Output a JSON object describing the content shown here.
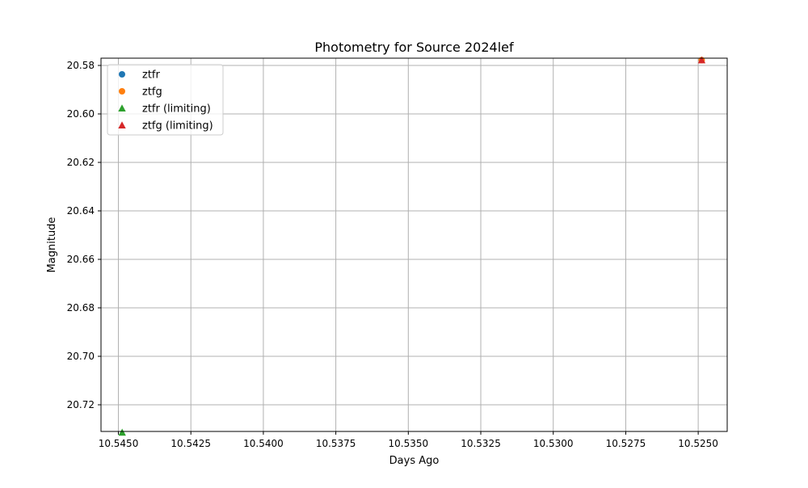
{
  "chart_data": {
    "type": "scatter",
    "title": "Photometry for Source 2024lef",
    "xlabel": "Days Ago",
    "ylabel": "Magnitude",
    "xlim": [
      10.5456,
      10.524
    ],
    "ylim": [
      20.731,
      20.577
    ],
    "x_inverted": true,
    "y_inverted": true,
    "xticks": [
      10.545,
      10.5425,
      10.54,
      10.5375,
      10.535,
      10.5325,
      10.53,
      10.5275,
      10.525
    ],
    "yticks": [
      20.58,
      20.6,
      20.62,
      20.64,
      20.66,
      20.68,
      20.7,
      20.72
    ],
    "xtick_labels": [
      "10.5450",
      "10.5425",
      "10.5400",
      "10.5375",
      "10.5350",
      "10.5325",
      "10.5300",
      "10.5275",
      "10.5250"
    ],
    "ytick_labels": [
      "20.58",
      "20.60",
      "20.62",
      "20.64",
      "20.66",
      "20.68",
      "20.70",
      "20.72"
    ],
    "grid": true,
    "legend_position": "top-left",
    "series": [
      {
        "name": "ztfr",
        "marker": "circle",
        "color": "#1f77b4",
        "points": []
      },
      {
        "name": "ztfg",
        "marker": "circle",
        "color": "#ff7f0e",
        "points": [
          {
            "x": 10.52488,
            "y": 20.5778
          }
        ]
      },
      {
        "name": "ztfr (limiting)",
        "marker": "triangle",
        "color": "#2ca02c",
        "points": [
          {
            "x": 10.54487,
            "y": 20.7314
          }
        ]
      },
      {
        "name": "ztfg (limiting)",
        "marker": "triangle",
        "color": "#d62728",
        "points": [
          {
            "x": 10.52488,
            "y": 20.5778
          }
        ]
      }
    ]
  }
}
